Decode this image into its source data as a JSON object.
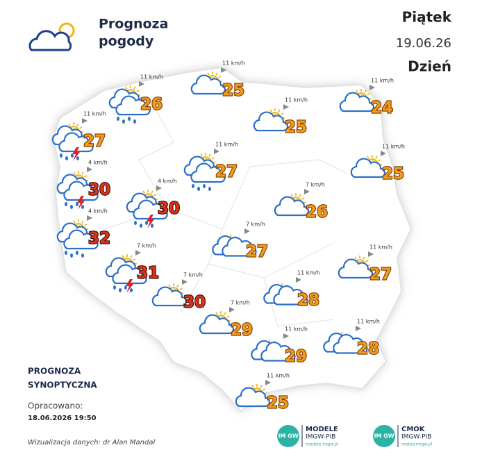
{
  "header": {
    "title_line1": "Prognoza",
    "title_line2": "pogody",
    "day": "Piątek",
    "date": "19.06.26",
    "period": "Dzień"
  },
  "stations": [
    {
      "temp": 26,
      "wind": "11 km/h",
      "color": "#f39a1e"
    },
    {
      "temp": 25,
      "wind": "11 km/h",
      "color": "#f39a1e"
    },
    {
      "temp": 24,
      "wind": "11 km/h",
      "color": "#f39a1e"
    },
    {
      "temp": 27,
      "wind": "11 km/h",
      "color": "#f39a1e"
    },
    {
      "temp": 25,
      "wind": "11 km/h",
      "color": "#f39a1e"
    },
    {
      "temp": 27,
      "wind": "11 km/h",
      "color": "#f39a1e"
    },
    {
      "temp": 25,
      "wind": "11 km/h",
      "color": "#f39a1e"
    },
    {
      "temp": 30,
      "wind": "4 km/h",
      "color": "#d8341c"
    },
    {
      "temp": 30,
      "wind": "4 km/h",
      "color": "#d8341c"
    },
    {
      "temp": 26,
      "wind": "7 km/h",
      "color": "#f39a1e"
    },
    {
      "temp": 32,
      "wind": "4 km/h",
      "color": "#d8341c"
    },
    {
      "temp": 27,
      "wind": "7 km/h",
      "color": "#f39a1e"
    },
    {
      "temp": 31,
      "wind": "7 km/h",
      "color": "#d8341c"
    },
    {
      "temp": 27,
      "wind": "11 km/h",
      "color": "#f39a1e"
    },
    {
      "temp": 30,
      "wind": "7 km/h",
      "color": "#d8341c"
    },
    {
      "temp": 28,
      "wind": "11 km/h",
      "color": "#f39a1e"
    },
    {
      "temp": 29,
      "wind": "7 km/h",
      "color": "#f39a1e"
    },
    {
      "temp": 28,
      "wind": "11 km/h",
      "color": "#f39a1e"
    },
    {
      "temp": 29,
      "wind": "11 km/h",
      "color": "#f39a1e"
    },
    {
      "temp": 25,
      "wind": "11 km/h",
      "color": "#f39a1e"
    }
  ],
  "footer": {
    "label1": "PROGNOZA",
    "label2": "SYNOPTYCZNA",
    "prepared": "Opracowano:",
    "prepared_at": "18.06.2026 19:50",
    "credit": "Wizualizacja danych: dr Alan Mandal"
  },
  "logos": [
    {
      "badge": "IM GW",
      "name": "MODELE",
      "org": "IMGW-PIB",
      "url": "modele.imgw.pl"
    },
    {
      "badge": "IM GW",
      "name": "CMOK",
      "org": "IMGW-PIB",
      "url": "meteo.imgw.pl"
    }
  ]
}
